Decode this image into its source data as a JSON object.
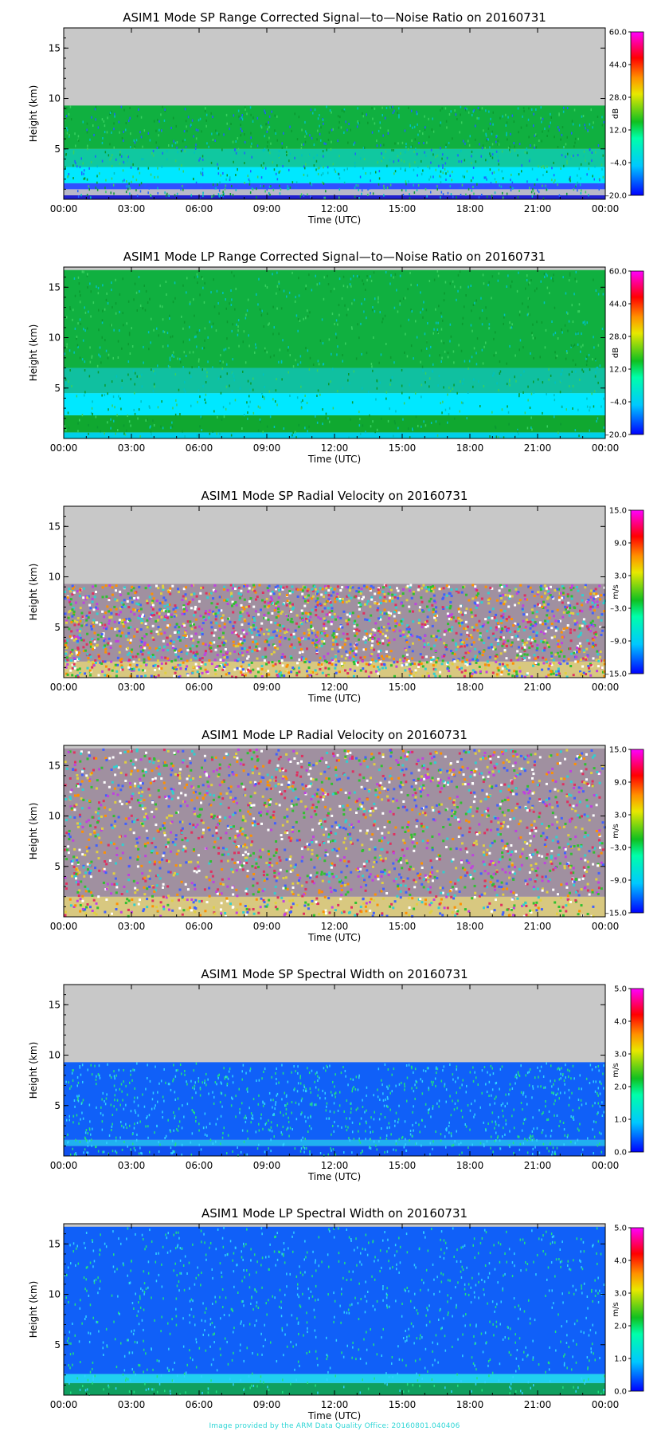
{
  "footer_text": "Image provided by the ARM Data Quality Office: 20160801.040406",
  "chart_data": [
    {
      "type": "heatmap",
      "title": "ASIM1 Mode SP Range Corrected Signal—to—Noise Ratio on 20160731",
      "xlabel": "Time (UTC)",
      "ylabel": "Height (km)",
      "xticks": [
        "00:00",
        "03:00",
        "06:00",
        "09:00",
        "12:00",
        "15:00",
        "18:00",
        "21:00",
        "00:00"
      ],
      "yticks": [
        "5",
        "10",
        "15"
      ],
      "ylim": [
        0,
        17
      ],
      "data_top_km": 9.3,
      "colorbar": {
        "unit": "dB",
        "ticks": [
          "60.0",
          "44.0",
          "28.0",
          "12.0",
          "–4.0",
          "–20.0"
        ],
        "range": [
          -20,
          60
        ]
      },
      "layers": [
        {
          "from_km": 0,
          "to_km": 0.4,
          "color": "#2020d0"
        },
        {
          "from_km": 0.4,
          "to_km": 1.0,
          "color": "#b8b8c8"
        },
        {
          "from_km": 1.0,
          "to_km": 1.6,
          "color": "#3050ff"
        },
        {
          "from_km": 1.6,
          "to_km": 3.2,
          "color": "#00e8ff"
        },
        {
          "from_km": 3.2,
          "to_km": 5.0,
          "color": "#10c8a0"
        },
        {
          "from_km": 5.0,
          "to_km": 9.3,
          "color": "#10b040"
        }
      ],
      "speckle_colors": [
        "#0a9a30",
        "#38d060",
        "#00c0c0",
        "#2060ff"
      ]
    },
    {
      "type": "heatmap",
      "title": "ASIM1 Mode LP Range Corrected Signal—to—Noise Ratio on 20160731",
      "xlabel": "Time (UTC)",
      "ylabel": "Height (km)",
      "xticks": [
        "00:00",
        "03:00",
        "06:00",
        "09:00",
        "12:00",
        "15:00",
        "18:00",
        "21:00",
        "00:00"
      ],
      "yticks": [
        "5",
        "10",
        "15"
      ],
      "ylim": [
        0,
        17
      ],
      "data_top_km": 16.7,
      "colorbar": {
        "unit": "dB",
        "ticks": [
          "60.0",
          "44.0",
          "28.0",
          "12.0",
          "–4.0",
          "–20.0"
        ],
        "range": [
          -20,
          60
        ]
      },
      "layers": [
        {
          "from_km": 0,
          "to_km": 0.6,
          "color": "#00d0e8"
        },
        {
          "from_km": 0.6,
          "to_km": 2.3,
          "color": "#10a830"
        },
        {
          "from_km": 2.3,
          "to_km": 4.5,
          "color": "#00e8ff"
        },
        {
          "from_km": 4.5,
          "to_km": 7.0,
          "color": "#10c0a0"
        },
        {
          "from_km": 7.0,
          "to_km": 16.7,
          "color": "#10b040"
        }
      ],
      "speckle_colors": [
        "#0a9a30",
        "#38d060",
        "#00c0c0"
      ]
    },
    {
      "type": "heatmap",
      "title": "ASIM1 Mode SP Radial Velocity  on 20160731",
      "xlabel": "Time (UTC)",
      "ylabel": "Height (km)",
      "xticks": [
        "00:00",
        "03:00",
        "06:00",
        "09:00",
        "12:00",
        "15:00",
        "18:00",
        "21:00",
        "00:00"
      ],
      "yticks": [
        "5",
        "10",
        "15"
      ],
      "ylim": [
        0,
        17
      ],
      "data_top_km": 9.3,
      "colorbar": {
        "unit": "m/s",
        "ticks": [
          "15.0",
          "9.0",
          "3.0",
          "–3.0",
          "–9.0",
          "–15.0"
        ],
        "range": [
          -15,
          15
        ]
      },
      "layers": [
        {
          "from_km": 0,
          "to_km": 1.6,
          "color": "#d8c880"
        },
        {
          "from_km": 1.6,
          "to_km": 9.3,
          "color": "#a090a0"
        }
      ],
      "speckle_colors": [
        "#e03060",
        "#30c030",
        "#4060ff",
        "#e0d040",
        "#c040e0",
        "#30d0d0",
        "#ff9000",
        "#ffffff"
      ]
    },
    {
      "type": "heatmap",
      "title": "ASIM1 Mode LP Radial Velocity  on 20160731",
      "xlabel": "Time (UTC)",
      "ylabel": "Height (km)",
      "xticks": [
        "00:00",
        "03:00",
        "06:00",
        "09:00",
        "12:00",
        "15:00",
        "18:00",
        "21:00",
        "00:00"
      ],
      "yticks": [
        "5",
        "10",
        "15"
      ],
      "ylim": [
        0,
        17
      ],
      "data_top_km": 16.7,
      "colorbar": {
        "unit": "m/s",
        "ticks": [
          "15.0",
          "9.0",
          "3.0",
          "–3.0",
          "–9.0",
          "–15.0"
        ],
        "range": [
          -15,
          15
        ]
      },
      "layers": [
        {
          "from_km": 0,
          "to_km": 2.0,
          "color": "#d8c880"
        },
        {
          "from_km": 2.0,
          "to_km": 16.7,
          "color": "#a090a0"
        }
      ],
      "speckle_colors": [
        "#e03060",
        "#30c030",
        "#4060ff",
        "#e0d040",
        "#c040e0",
        "#30d0d0",
        "#ff9000",
        "#ffffff"
      ]
    },
    {
      "type": "heatmap",
      "title": "ASIM1 Mode SP Spectral Width  on 20160731",
      "xlabel": "Time (UTC)",
      "ylabel": "Height (km)",
      "xticks": [
        "00:00",
        "03:00",
        "06:00",
        "09:00",
        "12:00",
        "15:00",
        "18:00",
        "21:00",
        "00:00"
      ],
      "yticks": [
        "5",
        "10",
        "15"
      ],
      "ylim": [
        0,
        17
      ],
      "data_top_km": 9.3,
      "colorbar": {
        "unit": "m/s",
        "ticks": [
          "5.0",
          "4.0",
          "3.0",
          "2.0",
          "1.0",
          "0.0"
        ],
        "range": [
          0,
          5
        ]
      },
      "layers": [
        {
          "from_km": 0,
          "to_km": 1.0,
          "color": "#1050f0"
        },
        {
          "from_km": 1.0,
          "to_km": 1.6,
          "color": "#20b0f0"
        },
        {
          "from_km": 1.6,
          "to_km": 9.3,
          "color": "#1060f8"
        }
      ],
      "speckle_colors": [
        "#30d0ff",
        "#20e080"
      ]
    },
    {
      "type": "heatmap",
      "title": "ASIM1 Mode LP Spectral Width  on 20160731",
      "xlabel": "Time (UTC)",
      "ylabel": "Height (km)",
      "xticks": [
        "00:00",
        "03:00",
        "06:00",
        "09:00",
        "12:00",
        "15:00",
        "18:00",
        "21:00",
        "00:00"
      ],
      "yticks": [
        "5",
        "10",
        "15"
      ],
      "ylim": [
        0,
        17
      ],
      "data_top_km": 16.7,
      "colorbar": {
        "unit": "m/s",
        "ticks": [
          "5.0",
          "4.0",
          "3.0",
          "2.0",
          "1.0",
          "0.0"
        ],
        "range": [
          0,
          5
        ]
      },
      "layers": [
        {
          "from_km": 0,
          "to_km": 1.2,
          "color": "#10a060"
        },
        {
          "from_km": 1.2,
          "to_km": 2.1,
          "color": "#20d0f0"
        },
        {
          "from_km": 2.1,
          "to_km": 16.7,
          "color": "#1060f8"
        }
      ],
      "speckle_colors": [
        "#30d0ff",
        "#20e080"
      ]
    }
  ]
}
